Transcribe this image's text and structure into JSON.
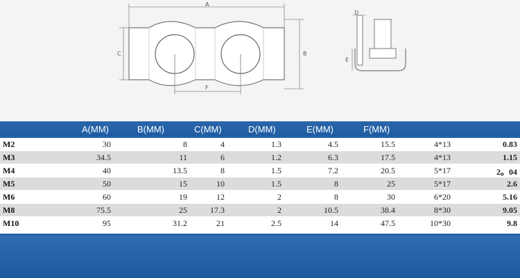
{
  "drawing": {
    "labels": {
      "a": "A",
      "b": "B",
      "c": "C",
      "d": "D",
      "e": "E",
      "f": "F"
    }
  },
  "table": {
    "headers": [
      "A(MM)",
      "B(MM)",
      "C(MM)",
      "D(MM)",
      "E(MM)",
      "F(MM)"
    ],
    "rows": [
      {
        "size": "M2",
        "a": "30",
        "b": "8",
        "c": "4",
        "d": "1.3",
        "e": "4.5",
        "f": "15.5",
        "spec": "4*13",
        "weight": "0.83"
      },
      {
        "size": "M3",
        "a": "34.5",
        "b": "11",
        "c": "6",
        "d": "1.2",
        "e": "6.3",
        "f": "17.5",
        "spec": "4*13",
        "weight": "1.15"
      },
      {
        "size": "M4",
        "a": "40",
        "b": "13.5",
        "c": "8",
        "d": "1.5",
        "e": "7.2",
        "f": "20.5",
        "spec": "5*17",
        "weight": "2。04"
      },
      {
        "size": "M5",
        "a": "50",
        "b": "15",
        "c": "10",
        "d": "1.5",
        "e": "8",
        "f": "25",
        "spec": "5*17",
        "weight": "2.6"
      },
      {
        "size": "M6",
        "a": "60",
        "b": "19",
        "c": "12",
        "d": "2",
        "e": "8",
        "f": "30",
        "spec": "6*20",
        "weight": "5.16"
      },
      {
        "size": "M8",
        "a": "75.5",
        "b": "25",
        "c": "17.3",
        "d": "2",
        "e": "10.5",
        "f": "38.4",
        "spec": "8*30",
        "weight": "9.05"
      },
      {
        "size": "M10",
        "a": "95",
        "b": "31.2",
        "c": "21",
        "d": "2.5",
        "e": "14",
        "f": "47.5",
        "spec": "10*30",
        "weight": "9.8"
      }
    ]
  }
}
